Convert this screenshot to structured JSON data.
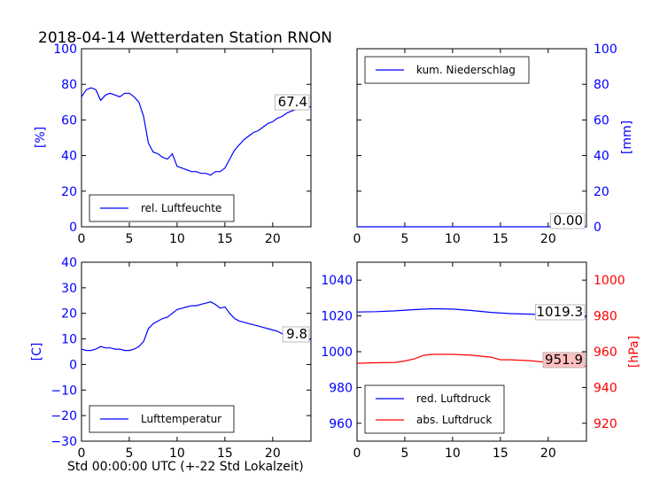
{
  "figure": {
    "title": "2018-04-14 Wetterdaten Station RNON",
    "xlabel": "Std 00:00:00 UTC (+-22 Std Lokalzeit)"
  },
  "colors": {
    "blue": "#0000ff",
    "red": "#ff0000",
    "last_box_red": "#ffc0c0"
  },
  "chart_data": [
    {
      "id": "humidity",
      "type": "line",
      "ylabel": "[%]",
      "xlim": [
        0,
        24
      ],
      "ylim": [
        0,
        100
      ],
      "x_ticks": [
        0,
        5,
        10,
        15,
        20
      ],
      "y_ticks": [
        0,
        20,
        40,
        60,
        80,
        100
      ],
      "y_axis_side": "left",
      "legend": {
        "placement": "lower-left",
        "entries": [
          "rel. Luftfeuchte"
        ]
      },
      "last_value_label": "67.4",
      "series": [
        {
          "name": "rel. Luftfeuchte",
          "color": "#0000ff",
          "x": [
            0,
            0.5,
            1,
            1.5,
            2,
            2.5,
            3,
            3.5,
            4,
            4.5,
            5,
            5.5,
            6,
            6.5,
            7,
            7.5,
            8,
            8.5,
            9,
            9.5,
            10,
            10.5,
            11,
            11.5,
            12,
            12.5,
            13,
            13.5,
            14,
            14.5,
            15,
            15.5,
            16,
            16.5,
            17,
            17.5,
            18,
            18.5,
            19,
            19.5,
            20,
            20.5,
            21,
            21.5,
            22,
            22.5,
            23,
            23.5,
            24
          ],
          "y": [
            73,
            77,
            78,
            77,
            71,
            74,
            75,
            74,
            73,
            75,
            75,
            73,
            70,
            62,
            47,
            42,
            41,
            39,
            38,
            41,
            34,
            33,
            32,
            31,
            31,
            30,
            30,
            29,
            31,
            31,
            33,
            38,
            43,
            46,
            49,
            51,
            53,
            54,
            56,
            58,
            59,
            61,
            62,
            64,
            65,
            66,
            67,
            67.4,
            67.4
          ]
        }
      ]
    },
    {
      "id": "precipitation",
      "type": "line",
      "ylabel": "[mm]",
      "xlim": [
        0,
        24
      ],
      "ylim": [
        0,
        100
      ],
      "x_ticks": [
        0,
        5,
        10,
        15,
        20
      ],
      "y_ticks": [
        0,
        20,
        40,
        60,
        80,
        100
      ],
      "y_axis_side": "right",
      "legend": {
        "placement": "upper-left",
        "entries": [
          "kum. Niederschlag"
        ]
      },
      "last_value_label": "0.00",
      "series": [
        {
          "name": "kum. Niederschlag",
          "color": "#0000ff",
          "x": [
            0,
            24
          ],
          "y": [
            0,
            0
          ]
        }
      ]
    },
    {
      "id": "temperature",
      "type": "line",
      "ylabel": "[C]",
      "xlim": [
        0,
        24
      ],
      "ylim": [
        -30,
        40
      ],
      "x_ticks": [
        0,
        5,
        10,
        15,
        20
      ],
      "y_ticks": [
        -30,
        -20,
        -10,
        0,
        10,
        20,
        30,
        40
      ],
      "y_axis_side": "left",
      "legend": {
        "placement": "lower-left",
        "entries": [
          "Lufttemperatur"
        ]
      },
      "last_value_label": "9.8",
      "series": [
        {
          "name": "Lufttemperatur",
          "color": "#0000ff",
          "x": [
            0,
            0.5,
            1,
            1.5,
            2,
            2.5,
            3,
            3.5,
            4,
            4.5,
            5,
            5.5,
            6,
            6.5,
            7,
            7.5,
            8,
            8.5,
            9,
            9.5,
            10,
            10.5,
            11,
            11.5,
            12,
            12.5,
            13,
            13.5,
            14,
            14.5,
            15,
            15.5,
            16,
            16.5,
            17,
            17.5,
            18,
            18.5,
            19,
            19.5,
            20,
            20.5,
            21,
            21.5,
            22,
            22.5,
            23,
            23.5,
            24
          ],
          "y": [
            6,
            5.5,
            5.5,
            6,
            7,
            6.5,
            6.5,
            6,
            6,
            5.5,
            5.5,
            6,
            7,
            9,
            14,
            16,
            17,
            18,
            18.5,
            20,
            21.5,
            22,
            22.5,
            23,
            23,
            23.5,
            24,
            24.5,
            23.5,
            22,
            22.5,
            20,
            18,
            17,
            16.5,
            16,
            15.5,
            15,
            14.5,
            14,
            13.5,
            13,
            12,
            11.5,
            11,
            10.5,
            10,
            9.8,
            9.8
          ]
        }
      ]
    },
    {
      "id": "pressure",
      "type": "line",
      "ylabel": "[hPa]",
      "xlim": [
        0,
        24
      ],
      "ylim_left": [
        950,
        1050
      ],
      "ylim_right": [
        910,
        1010
      ],
      "x_ticks": [
        0,
        5,
        10,
        15,
        20
      ],
      "y_ticks_left": [
        960,
        980,
        1000,
        1020,
        1040
      ],
      "y_ticks_right": [
        920,
        940,
        960,
        980,
        1000
      ],
      "legend": {
        "placement": "lower-left",
        "entries": [
          "red. Luftdruck",
          "abs. Luftdruck"
        ]
      },
      "last_value_labels": [
        "1019.3",
        "951.9"
      ],
      "series": [
        {
          "name": "red. Luftdruck",
          "color": "#0000ff",
          "axis": "left",
          "x": [
            0,
            2,
            4,
            6,
            8,
            10,
            12,
            14,
            16,
            18,
            20,
            22,
            24
          ],
          "y": [
            1022.2,
            1022.4,
            1022.8,
            1023.5,
            1024,
            1023.8,
            1023,
            1022,
            1021.3,
            1021,
            1020.5,
            1019.8,
            1019.3
          ]
        },
        {
          "name": "abs. Luftdruck",
          "color": "#ff0000",
          "axis": "right",
          "x": [
            0,
            2,
            4,
            5,
            6,
            7,
            8,
            10,
            12,
            14,
            15,
            16,
            18,
            20,
            22,
            24
          ],
          "y": [
            953.5,
            953.8,
            954,
            954.8,
            956,
            958,
            958.5,
            958.5,
            958,
            957,
            955.5,
            955.5,
            955,
            954,
            952.5,
            951.9
          ]
        }
      ]
    }
  ]
}
